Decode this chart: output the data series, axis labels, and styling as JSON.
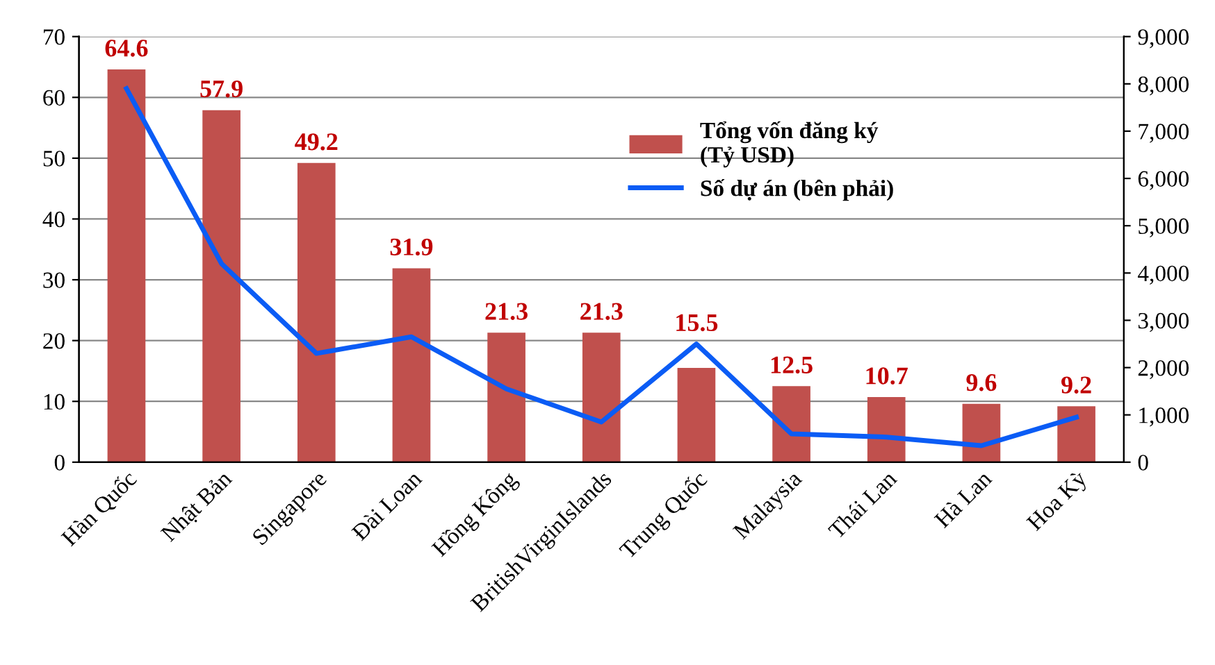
{
  "chart_data": {
    "type": "bar",
    "categories": [
      "Hàn Quốc",
      "Nhật Bản",
      "Singapore",
      "Đài Loan",
      "Hồng Kông",
      "BritishVirginIslands",
      "Trung Quốc",
      "Malaysia",
      "Thái Lan",
      "Hà Lan",
      "Hoa Kỳ"
    ],
    "series": [
      {
        "name": "Tổng vốn đăng ký\n(Tỷ USD)",
        "color": "#c0504d",
        "values": [
          64.6,
          57.9,
          49.2,
          31.9,
          21.3,
          21.3,
          15.5,
          12.5,
          10.7,
          9.6,
          9.2
        ],
        "value_labels": [
          "64.6",
          "57.9",
          "49.2",
          "31.9",
          "21.3",
          "21.3",
          "15.5",
          "12.5",
          "10.7",
          "9.6",
          "9.2"
        ]
      },
      {
        "name": "Số dự án (bên phải)",
        "type": "line",
        "axis": "y2",
        "color": "#0b5cf5",
        "values": [
          7900,
          4200,
          2300,
          2650,
          1550,
          850,
          2500,
          600,
          530,
          350,
          950
        ]
      }
    ],
    "ylim": [
      0,
      70
    ],
    "yticks": [
      0,
      10,
      20,
      30,
      40,
      50,
      60,
      70
    ],
    "y2lim": [
      0,
      9000
    ],
    "y2ticks": [
      {
        "value": 0,
        "label": "0"
      },
      {
        "value": 1000,
        "label": "1,000"
      },
      {
        "value": 2000,
        "label": "2,000"
      },
      {
        "value": 3000,
        "label": "3,000"
      },
      {
        "value": 4000,
        "label": "4,000"
      },
      {
        "value": 5000,
        "label": "5,000"
      },
      {
        "value": 6000,
        "label": "6,000"
      },
      {
        "value": 7000,
        "label": "7,000"
      },
      {
        "value": 8000,
        "label": "8,000"
      },
      {
        "value": 9000,
        "label": "9,000"
      }
    ],
    "grid": "y",
    "legend": "top right",
    "marker": "none",
    "line_style": "solid"
  }
}
